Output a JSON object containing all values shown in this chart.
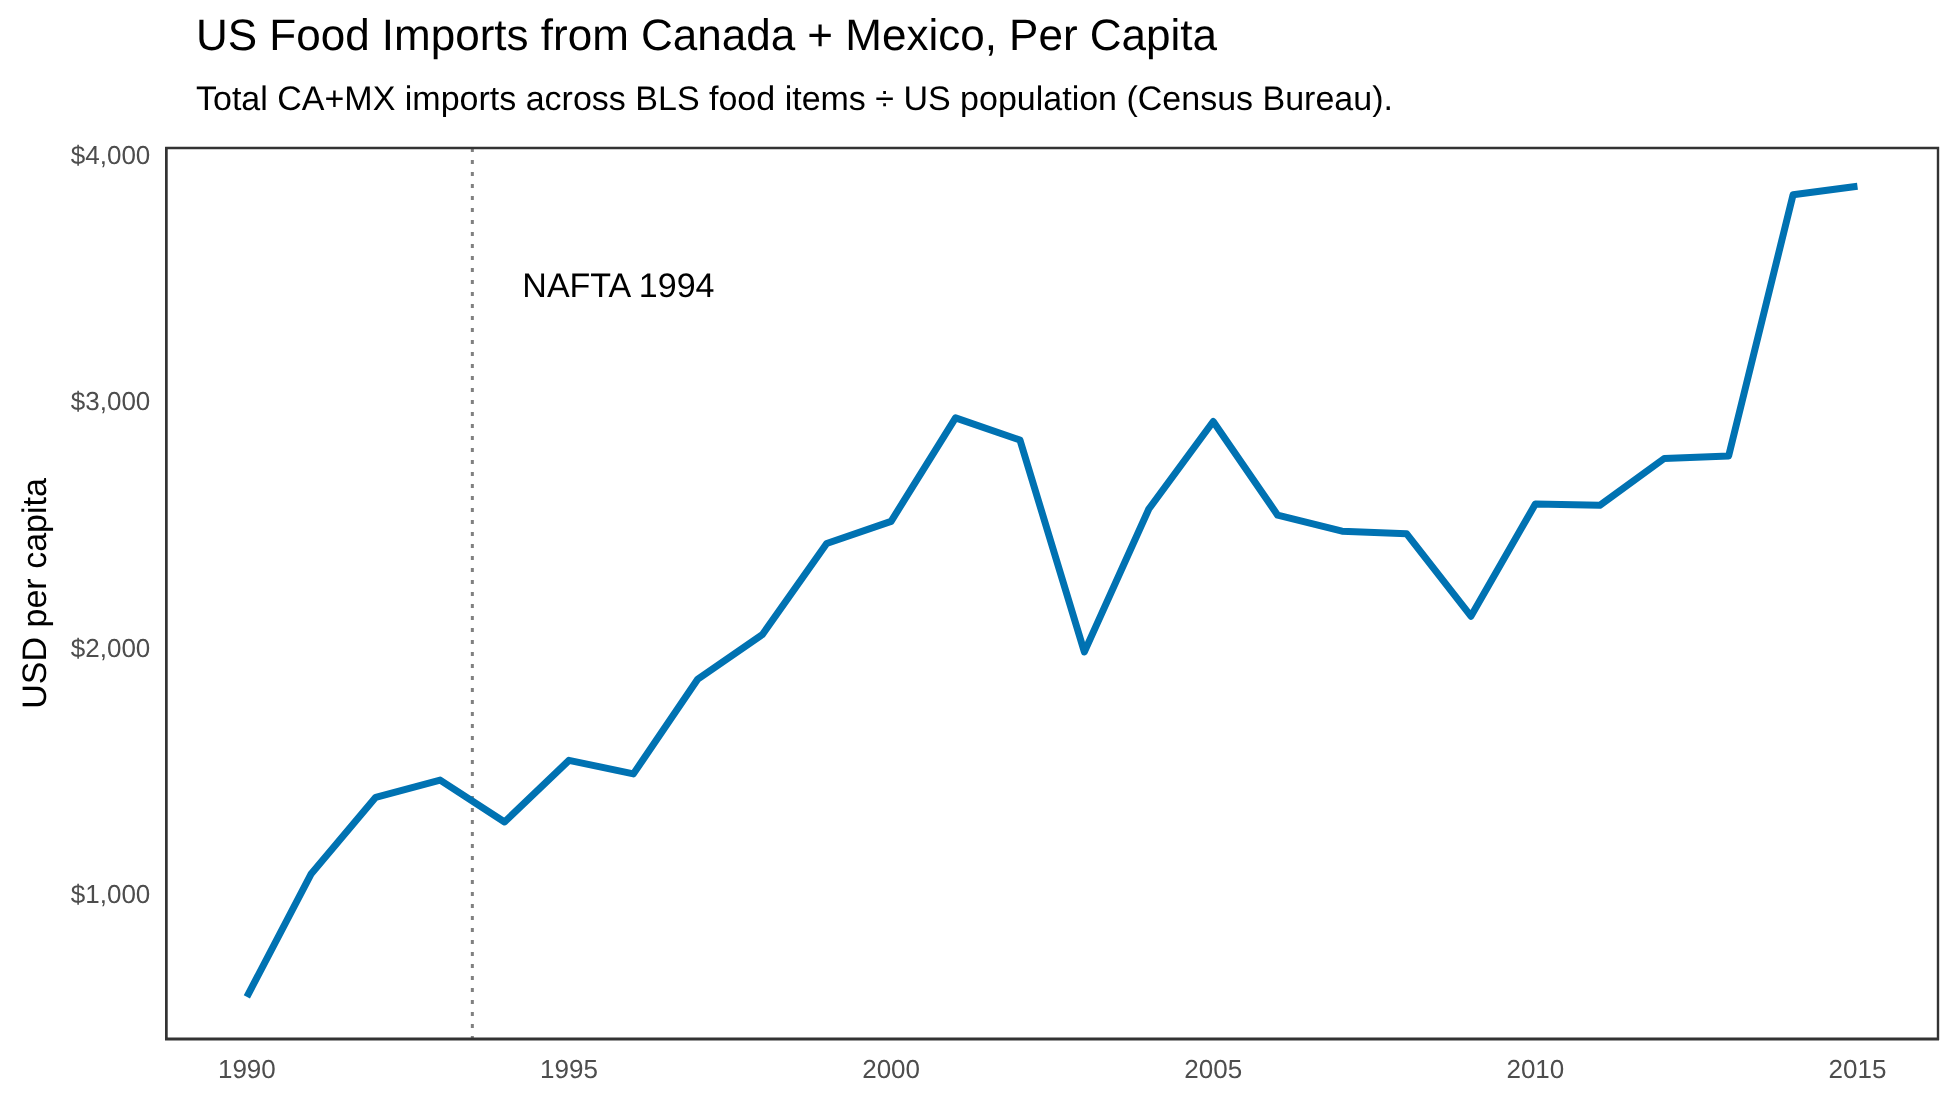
{
  "chart_data": {
    "type": "line",
    "title": "US Food Imports from Canada + Mexico, Per Capita",
    "subtitle": "Total CA+MX imports across BLS food items ÷ US population (Census Bureau).",
    "ylabel": "USD per capita",
    "x": [
      1990,
      1991,
      1992,
      1993,
      1994,
      1995,
      1996,
      1997,
      1998,
      1999,
      2000,
      2001,
      2002,
      2003,
      2004,
      2005,
      2006,
      2007,
      2008,
      2009,
      2010,
      2011,
      2012,
      2013,
      2014,
      2015
    ],
    "series": [
      {
        "color": "#0072b2",
        "values": [
          590,
          1090,
          1400,
          1470,
          1300,
          1550,
          1495,
          1880,
          2060,
          2430,
          2520,
          2940,
          2850,
          1990,
          2570,
          2925,
          2545,
          2480,
          2470,
          2135,
          2590,
          2585,
          2775,
          2785,
          3845,
          3880
        ]
      }
    ],
    "xlim": [
      1988.75,
      2016.25
    ],
    "xticks": [
      1990,
      1995,
      2000,
      2005,
      2010,
      2015
    ],
    "ylim": [
      420,
      4035
    ],
    "yticks": [
      {
        "value": 1000,
        "label": "$1,000"
      },
      {
        "value": 2000,
        "label": "$2,000"
      },
      {
        "value": 3000,
        "label": "$3,000"
      },
      {
        "value": 4000,
        "label": "$4,000"
      }
    ],
    "ref_lines": [
      {
        "axis": "x",
        "value": 1993.5,
        "label": "NAFTA 1994",
        "color": "#808080",
        "line_style": "dotted"
      }
    ],
    "grid": false,
    "legend": false,
    "marker": "none",
    "line_style": "solid"
  }
}
